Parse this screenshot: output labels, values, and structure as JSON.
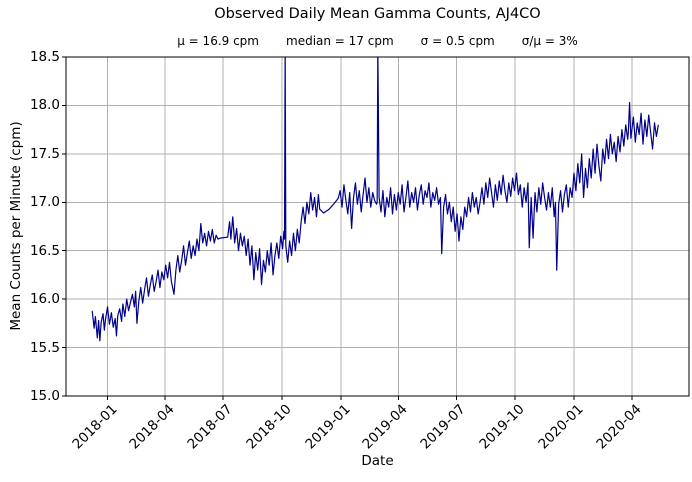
{
  "title": "Observed Daily Mean Gamma Counts, AJ4CO",
  "stats": {
    "mu": "μ = 16.9 cpm",
    "median": "median = 17 cpm",
    "sigma": "σ = 0.5 cpm",
    "ratio": "σ/μ = 3%"
  },
  "chart_data": {
    "type": "line",
    "title": "Observed Daily Mean Gamma Counts, AJ4CO",
    "subtitle": "μ = 16.9 cpm     median = 17 cpm     σ = 0.5 cpm     σ/μ = 3%",
    "xlabel": "Date",
    "ylabel": "Mean Counts per Minute (cpm)",
    "grid": true,
    "legend": "none",
    "line_color": "#00008b",
    "grid_color": "#b0b0b0",
    "spine_color": "#000000",
    "x_unit": "days since 2017-12-08",
    "xlim": [
      -41,
      934
    ],
    "ylim": [
      15.0,
      18.5
    ],
    "x_ticks": [
      {
        "pos": 24,
        "label": "2018-01"
      },
      {
        "pos": 114,
        "label": "2018-04"
      },
      {
        "pos": 205,
        "label": "2018-07"
      },
      {
        "pos": 297,
        "label": "2018-10"
      },
      {
        "pos": 389,
        "label": "2019-01"
      },
      {
        "pos": 479,
        "label": "2019-04"
      },
      {
        "pos": 570,
        "label": "2019-07"
      },
      {
        "pos": 662,
        "label": "2019-10"
      },
      {
        "pos": 754,
        "label": "2020-01"
      },
      {
        "pos": 845,
        "label": "2020-04"
      }
    ],
    "y_ticks": [
      {
        "pos": 15.0,
        "label": "15.0"
      },
      {
        "pos": 15.5,
        "label": "15.5"
      },
      {
        "pos": 16.0,
        "label": "16.0"
      },
      {
        "pos": 16.5,
        "label": "16.5"
      },
      {
        "pos": 17.0,
        "label": "17.0"
      },
      {
        "pos": 17.5,
        "label": "17.5"
      },
      {
        "pos": 18.0,
        "label": "18.0"
      },
      {
        "pos": 18.5,
        "label": "18.5"
      }
    ],
    "series": [
      {
        "name": "AJ4CO daily mean gamma counts (cpm)",
        "points": [
          [
            0,
            15.88
          ],
          [
            3,
            15.7
          ],
          [
            5,
            15.82
          ],
          [
            8,
            15.6
          ],
          [
            10,
            15.78
          ],
          [
            12,
            15.57
          ],
          [
            14,
            15.76
          ],
          [
            17,
            15.85
          ],
          [
            19,
            15.68
          ],
          [
            21,
            15.8
          ],
          [
            24,
            15.92
          ],
          [
            27,
            15.74
          ],
          [
            30,
            15.86
          ],
          [
            33,
            15.71
          ],
          [
            36,
            15.8
          ],
          [
            38,
            15.62
          ],
          [
            40,
            15.83
          ],
          [
            43,
            15.9
          ],
          [
            46,
            15.77
          ],
          [
            48,
            15.95
          ],
          [
            51,
            15.82
          ],
          [
            54,
            16.0
          ],
          [
            57,
            15.88
          ],
          [
            60,
            15.97
          ],
          [
            63,
            16.05
          ],
          [
            66,
            15.92
          ],
          [
            68,
            16.08
          ],
          [
            70,
            15.75
          ],
          [
            73,
            15.98
          ],
          [
            76,
            16.12
          ],
          [
            79,
            15.96
          ],
          [
            82,
            16.1
          ],
          [
            85,
            16.22
          ],
          [
            88,
            16.03
          ],
          [
            91,
            16.15
          ],
          [
            94,
            16.25
          ],
          [
            97,
            16.08
          ],
          [
            100,
            16.18
          ],
          [
            103,
            16.3
          ],
          [
            106,
            16.12
          ],
          [
            109,
            16.28
          ],
          [
            112,
            16.2
          ],
          [
            115,
            16.35
          ],
          [
            118,
            16.22
          ],
          [
            121,
            16.38
          ],
          [
            124,
            16.18
          ],
          [
            128,
            16.05
          ],
          [
            131,
            16.3
          ],
          [
            134,
            16.45
          ],
          [
            137,
            16.28
          ],
          [
            140,
            16.4
          ],
          [
            143,
            16.55
          ],
          [
            146,
            16.35
          ],
          [
            149,
            16.48
          ],
          [
            152,
            16.6
          ],
          [
            155,
            16.42
          ],
          [
            158,
            16.55
          ],
          [
            161,
            16.45
          ],
          [
            164,
            16.62
          ],
          [
            167,
            16.5
          ],
          [
            170,
            16.78
          ],
          [
            173,
            16.58
          ],
          [
            176,
            16.68
          ],
          [
            179,
            16.55
          ],
          [
            182,
            16.7
          ],
          [
            185,
            16.6
          ],
          [
            188,
            16.72
          ],
          [
            191,
            16.58
          ],
          [
            194,
            16.66
          ],
          [
            197,
            16.62
          ],
          [
            200,
            16.63
          ],
          [
            212,
            16.64
          ],
          [
            215,
            16.8
          ],
          [
            217,
            16.62
          ],
          [
            220,
            16.85
          ],
          [
            223,
            16.58
          ],
          [
            226,
            16.73
          ],
          [
            229,
            16.5
          ],
          [
            232,
            16.68
          ],
          [
            235,
            16.55
          ],
          [
            238,
            16.65
          ],
          [
            241,
            16.45
          ],
          [
            244,
            16.62
          ],
          [
            247,
            16.35
          ],
          [
            250,
            16.55
          ],
          [
            253,
            16.2
          ],
          [
            256,
            16.48
          ],
          [
            259,
            16.3
          ],
          [
            262,
            16.52
          ],
          [
            265,
            16.15
          ],
          [
            268,
            16.4
          ],
          [
            271,
            16.28
          ],
          [
            274,
            16.5
          ],
          [
            277,
            16.35
          ],
          [
            280,
            16.58
          ],
          [
            283,
            16.25
          ],
          [
            286,
            16.45
          ],
          [
            289,
            16.58
          ],
          [
            292,
            16.42
          ],
          [
            295,
            16.65
          ],
          [
            298,
            16.52
          ],
          [
            300,
            16.7
          ],
          [
            301,
            16.62
          ],
          [
            302,
            18.62
          ],
          [
            303,
            16.55
          ],
          [
            306,
            16.38
          ],
          [
            309,
            16.6
          ],
          [
            312,
            16.45
          ],
          [
            315,
            16.68
          ],
          [
            318,
            16.5
          ],
          [
            321,
            16.72
          ],
          [
            324,
            16.58
          ],
          [
            327,
            16.8
          ],
          [
            330,
            16.95
          ],
          [
            333,
            16.78
          ],
          [
            336,
            17.0
          ],
          [
            339,
            16.88
          ],
          [
            342,
            17.1
          ],
          [
            345,
            16.92
          ],
          [
            348,
            17.05
          ],
          [
            351,
            16.85
          ],
          [
            354,
            17.08
          ],
          [
            356,
            16.93
          ],
          [
            362,
            16.89
          ],
          [
            371,
            16.93
          ],
          [
            379,
            16.99
          ],
          [
            385,
            17.04
          ],
          [
            388,
            17.12
          ],
          [
            391,
            16.95
          ],
          [
            394,
            17.18
          ],
          [
            397,
            17.02
          ],
          [
            400,
            16.88
          ],
          [
            403,
            17.1
          ],
          [
            406,
            16.73
          ],
          [
            409,
            17.05
          ],
          [
            412,
            17.2
          ],
          [
            415,
            16.98
          ],
          [
            418,
            17.12
          ],
          [
            421,
            16.9
          ],
          [
            424,
            17.08
          ],
          [
            427,
            17.25
          ],
          [
            430,
            17.0
          ],
          [
            433,
            17.15
          ],
          [
            436,
            16.95
          ],
          [
            439,
            17.1
          ],
          [
            442,
            17.02
          ],
          [
            445,
            16.98
          ],
          [
            446,
            17.0
          ],
          [
            447,
            18.62
          ],
          [
            449,
            17.05
          ],
          [
            452,
            16.9
          ],
          [
            455,
            17.12
          ],
          [
            458,
            16.85
          ],
          [
            461,
            17.05
          ],
          [
            464,
            16.95
          ],
          [
            467,
            17.15
          ],
          [
            470,
            16.88
          ],
          [
            473,
            17.08
          ],
          [
            476,
            16.92
          ],
          [
            479,
            17.1
          ],
          [
            482,
            16.98
          ],
          [
            485,
            17.18
          ],
          [
            488,
            16.9
          ],
          [
            491,
            17.05
          ],
          [
            494,
            17.22
          ],
          [
            497,
            16.95
          ],
          [
            500,
            17.1
          ],
          [
            503,
            17.0
          ],
          [
            506,
            17.15
          ],
          [
            509,
            16.92
          ],
          [
            512,
            17.08
          ],
          [
            515,
            17.18
          ],
          [
            518,
            16.98
          ],
          [
            521,
            17.12
          ],
          [
            524,
            17.05
          ],
          [
            527,
            17.2
          ],
          [
            530,
            16.95
          ],
          [
            533,
            17.1
          ],
          [
            536,
            17.02
          ],
          [
            539,
            17.15
          ],
          [
            542,
            16.98
          ],
          [
            545,
            17.05
          ],
          [
            547,
            16.47
          ],
          [
            550,
            16.95
          ],
          [
            553,
            17.08
          ],
          [
            556,
            16.88
          ],
          [
            559,
            17.0
          ],
          [
            562,
            16.8
          ],
          [
            565,
            16.95
          ],
          [
            568,
            16.7
          ],
          [
            571,
            16.88
          ],
          [
            574,
            16.6
          ],
          [
            577,
            16.85
          ],
          [
            580,
            16.72
          ],
          [
            583,
            16.95
          ],
          [
            586,
            16.85
          ],
          [
            589,
            17.05
          ],
          [
            592,
            16.9
          ],
          [
            595,
            17.1
          ],
          [
            598,
            16.95
          ],
          [
            601,
            17.05
          ],
          [
            604,
            16.88
          ],
          [
            607,
            17.0
          ],
          [
            610,
            17.15
          ],
          [
            613,
            16.98
          ],
          [
            616,
            17.2
          ],
          [
            619,
            17.05
          ],
          [
            622,
            17.25
          ],
          [
            625,
            17.1
          ],
          [
            628,
            16.95
          ],
          [
            631,
            17.18
          ],
          [
            634,
            17.02
          ],
          [
            637,
            17.22
          ],
          [
            640,
            17.08
          ],
          [
            643,
            17.28
          ],
          [
            646,
            17.12
          ],
          [
            649,
            17.0
          ],
          [
            652,
            17.2
          ],
          [
            655,
            17.06
          ],
          [
            658,
            17.25
          ],
          [
            661,
            17.12
          ],
          [
            664,
            17.3
          ],
          [
            667,
            17.08
          ],
          [
            670,
            17.18
          ],
          [
            673,
            16.95
          ],
          [
            676,
            17.15
          ],
          [
            679,
            17.0
          ],
          [
            682,
            17.2
          ],
          [
            684,
            16.53
          ],
          [
            687,
            17.05
          ],
          [
            690,
            16.63
          ],
          [
            693,
            17.1
          ],
          [
            696,
            16.9
          ],
          [
            699,
            17.15
          ],
          [
            702,
            16.98
          ],
          [
            705,
            17.2
          ],
          [
            708,
            17.05
          ],
          [
            711,
            16.92
          ],
          [
            714,
            17.1
          ],
          [
            717,
            16.95
          ],
          [
            720,
            17.15
          ],
          [
            723,
            16.85
          ],
          [
            725,
            17.0
          ],
          [
            727,
            16.3
          ],
          [
            730,
            16.98
          ],
          [
            733,
            17.12
          ],
          [
            736,
            16.9
          ],
          [
            739,
            17.08
          ],
          [
            742,
            17.18
          ],
          [
            745,
            16.95
          ],
          [
            748,
            17.15
          ],
          [
            751,
            17.05
          ],
          [
            754,
            17.3
          ],
          [
            757,
            17.12
          ],
          [
            760,
            17.4
          ],
          [
            763,
            17.2
          ],
          [
            766,
            17.5
          ],
          [
            769,
            17.05
          ],
          [
            772,
            17.35
          ],
          [
            775,
            17.15
          ],
          [
            778,
            17.45
          ],
          [
            781,
            17.25
          ],
          [
            784,
            17.55
          ],
          [
            787,
            17.3
          ],
          [
            790,
            17.6
          ],
          [
            793,
            17.38
          ],
          [
            796,
            17.22
          ],
          [
            799,
            17.55
          ],
          [
            802,
            17.4
          ],
          [
            805,
            17.65
          ],
          [
            808,
            17.45
          ],
          [
            811,
            17.7
          ],
          [
            814,
            17.5
          ],
          [
            817,
            17.62
          ],
          [
            820,
            17.42
          ],
          [
            823,
            17.68
          ],
          [
            826,
            17.52
          ],
          [
            829,
            17.75
          ],
          [
            832,
            17.58
          ],
          [
            835,
            17.8
          ],
          [
            838,
            17.65
          ],
          [
            839,
            17.72
          ],
          [
            841,
            18.03
          ],
          [
            843,
            17.66
          ],
          [
            847,
            17.88
          ],
          [
            850,
            17.62
          ],
          [
            853,
            17.82
          ],
          [
            856,
            17.7
          ],
          [
            859,
            17.92
          ],
          [
            862,
            17.6
          ],
          [
            865,
            17.85
          ],
          [
            868,
            17.68
          ],
          [
            871,
            17.9
          ],
          [
            874,
            17.72
          ],
          [
            877,
            17.55
          ],
          [
            880,
            17.82
          ],
          [
            883,
            17.68
          ],
          [
            886,
            17.8
          ]
        ]
      }
    ]
  }
}
